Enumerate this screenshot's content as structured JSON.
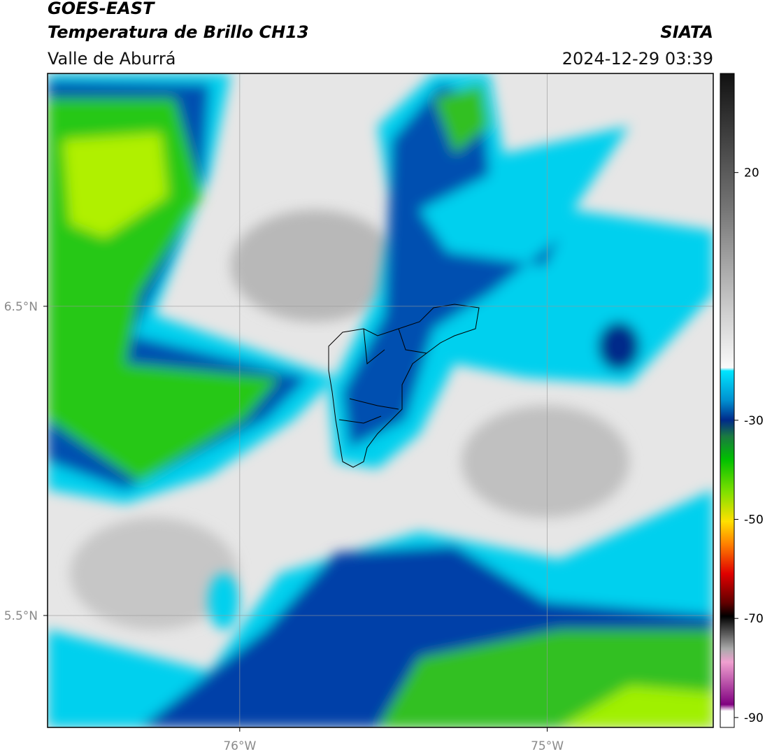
{
  "header": {
    "title": "GOES-EAST",
    "subtitle": "Temperatura de Brillo CH13",
    "region": "Valle de Aburrá",
    "source": "SIATA",
    "timestamp": "2024-12-29 03:39"
  },
  "map": {
    "xlim": [
      -76.625,
      -74.46
    ],
    "ylim": [
      5.138,
      7.253
    ],
    "xticks": [
      {
        "value": -76,
        "label": "76°W"
      },
      {
        "value": -75,
        "label": "75°W"
      }
    ],
    "yticks": [
      {
        "value": 6.5,
        "label": "6.5°N"
      },
      {
        "value": 5.5,
        "label": "5.5°N"
      }
    ],
    "grid": true
  },
  "colorbar": {
    "lim": [
      -92,
      40
    ],
    "ticks": [
      20,
      -30,
      -50,
      -70,
      -90
    ]
  }
}
